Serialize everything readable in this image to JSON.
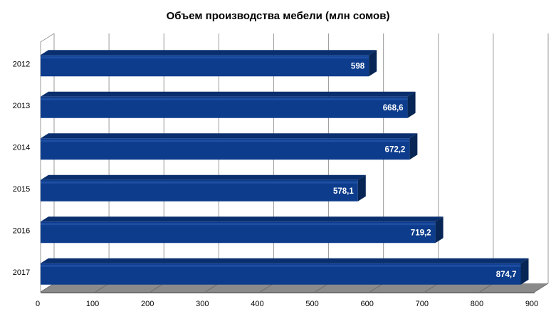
{
  "chart_data": {
    "type": "bar",
    "orientation": "horizontal",
    "title": "Объем производства мебели (млн сомов)",
    "xlabel": "",
    "ylabel": "",
    "categories": [
      "2012",
      "2013",
      "2014",
      "2015",
      "2016",
      "2017"
    ],
    "values": [
      598,
      668.6,
      672.2,
      578.1,
      719.2,
      874.7
    ],
    "value_labels": [
      "598",
      "668,6",
      "672,2",
      "578,1",
      "719,2",
      "874,7"
    ],
    "xlim": [
      0,
      900
    ],
    "xticks": [
      0,
      100,
      200,
      300,
      400,
      500,
      600,
      700,
      800,
      900
    ],
    "grid": true,
    "legend": "none",
    "style": "3d",
    "colors": {
      "bar_front": "#0d3c8c",
      "bar_top": "#0a2f6e",
      "bar_side": "#072656",
      "floor": "#8a8a8a",
      "grid": "#9a9a9a"
    }
  }
}
